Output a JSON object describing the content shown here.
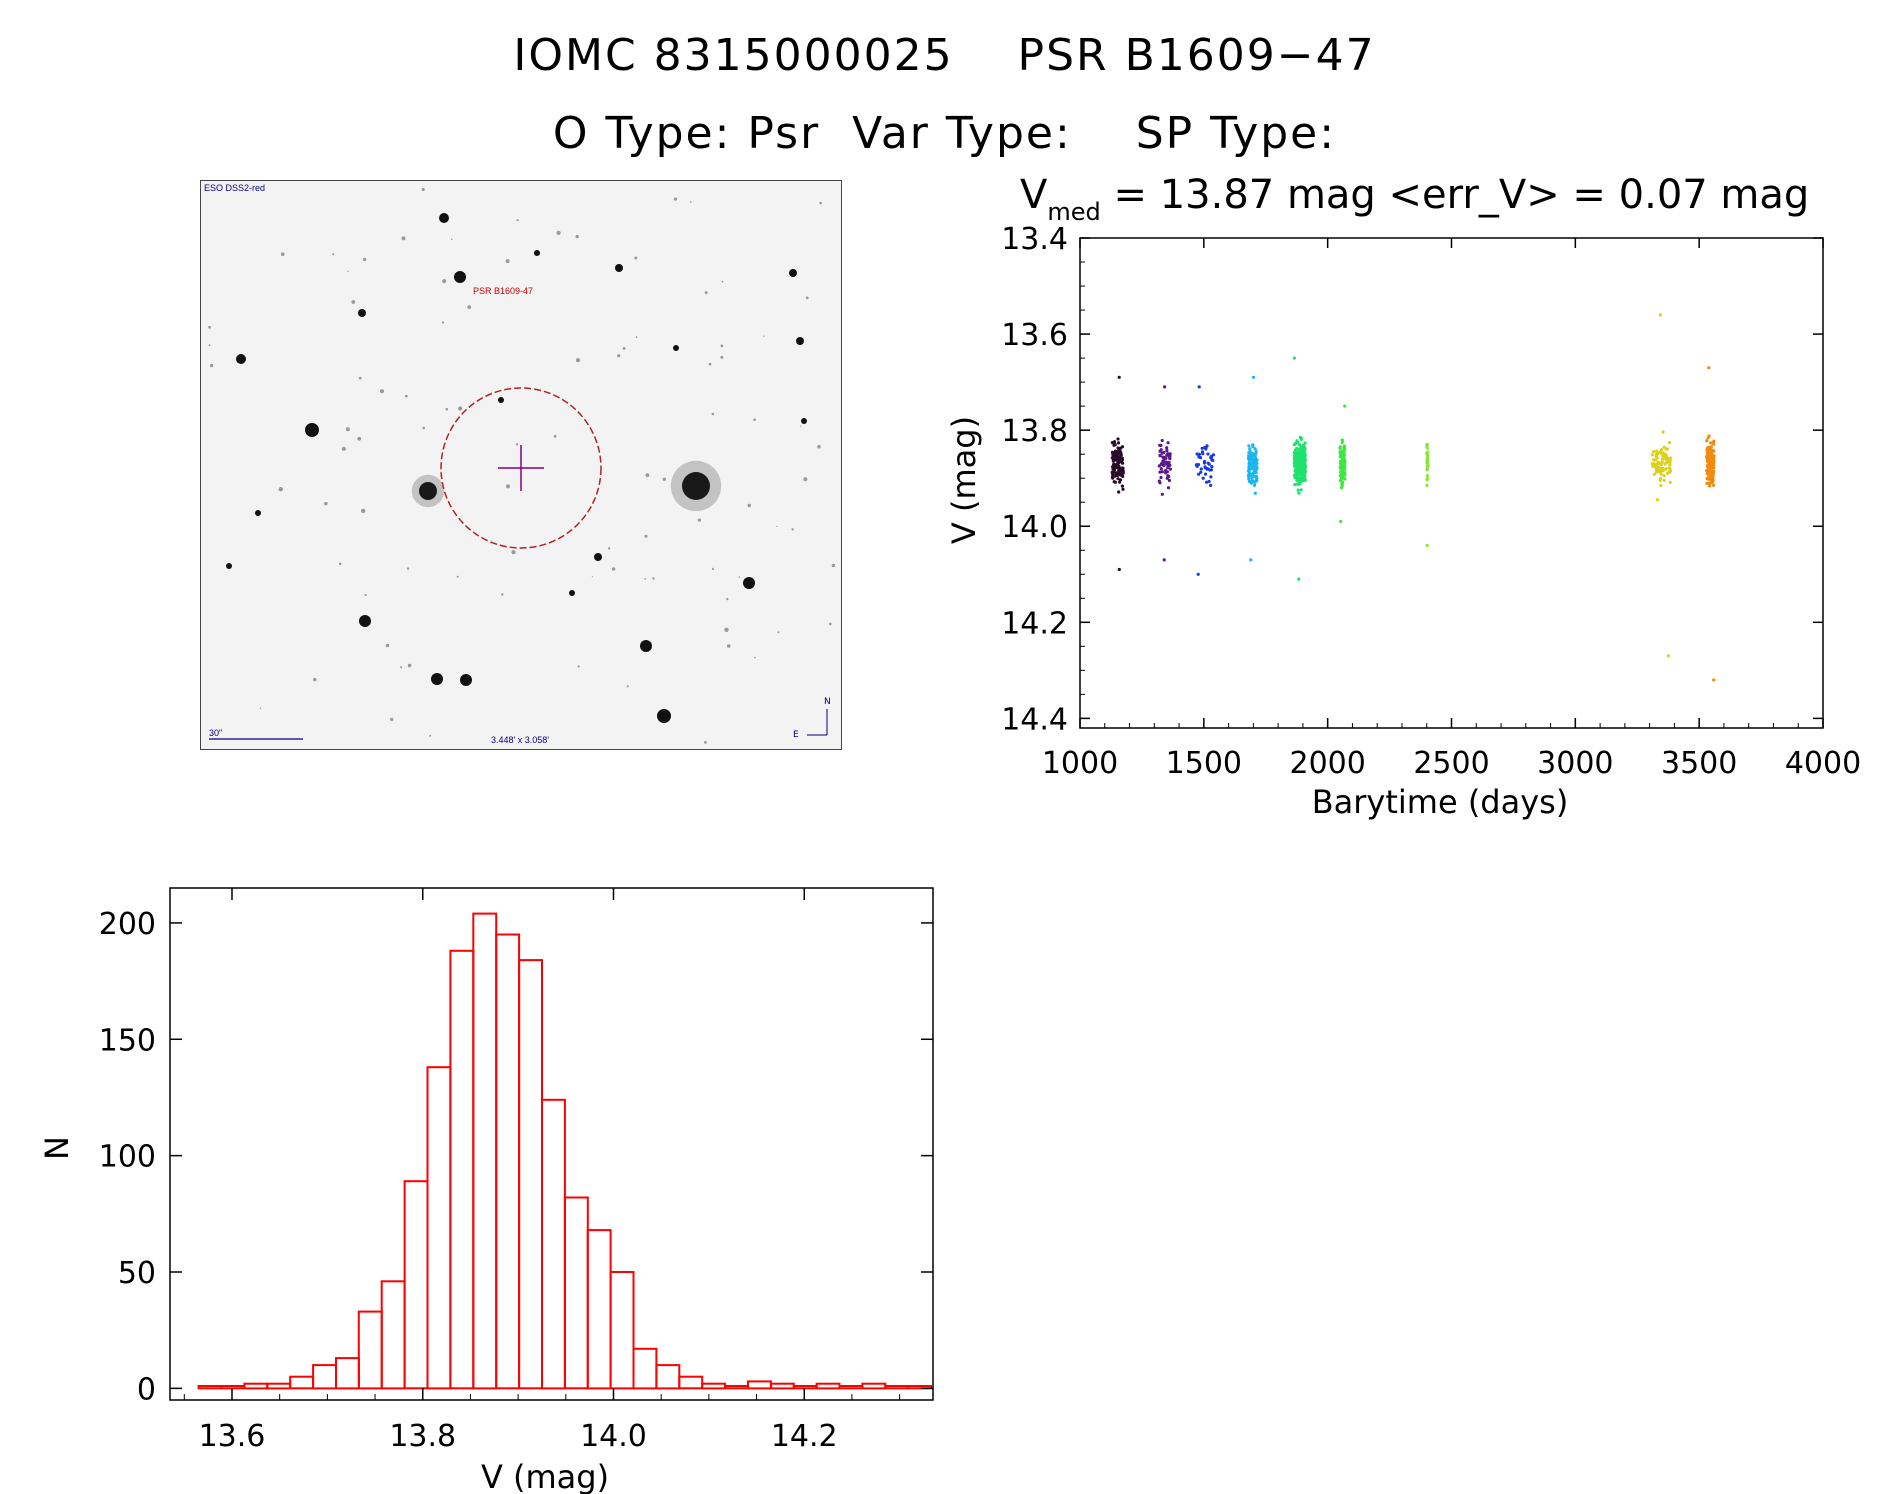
{
  "header": {
    "line1": "IOMC 8315000025    PSR B1609−47",
    "line2": "O Type: Psr  Var Type:    SP Type:"
  },
  "finder": {
    "survey_label": "ESO DSS2-red",
    "object_label": "PSR B1609-47",
    "scale_label": "30\"",
    "fov_label": "3.448' x 3.058'",
    "north_label": "N",
    "east_label": "E",
    "colors": {
      "circle": "#b22222",
      "cross": "#800080",
      "text_red": "#cc0000",
      "text_blue": "#000080"
    }
  },
  "chart_data": [
    {
      "type": "scatter",
      "name": "light-curve",
      "title_V": "V",
      "title_sub": "med",
      "title_rest": " = 13.87 mag <err_V> = 0.07 mag",
      "xlabel": "Barytime (days)",
      "ylabel": "V (mag)",
      "xlim": [
        1000,
        4000
      ],
      "ylim": [
        14.42,
        13.4
      ],
      "x_ticks": [
        1000,
        1500,
        2000,
        2500,
        3000,
        3500,
        4000
      ],
      "x_tick_labels": [
        "1000",
        "1500",
        "2000",
        "2500",
        "3000",
        "3500",
        "4000"
      ],
      "y_ticks": [
        13.4,
        13.6,
        13.8,
        14.0,
        14.2,
        14.4
      ],
      "y_tick_labels": [
        "13.4",
        "13.6",
        "13.8",
        "14.0",
        "14.2",
        "14.4"
      ],
      "groups": [
        {
          "x0": 1130,
          "x1": 1175,
          "ymin": 13.69,
          "ymax": 14.09,
          "n": 120,
          "color": "#2a0a2a"
        },
        {
          "x0": 1320,
          "x1": 1365,
          "ymin": 13.71,
          "ymax": 14.07,
          "n": 60,
          "color": "#5a1a8a"
        },
        {
          "x0": 1470,
          "x1": 1540,
          "ymin": 13.71,
          "ymax": 14.1,
          "n": 45,
          "color": "#1a3ae0"
        },
        {
          "x0": 1680,
          "x1": 1715,
          "ymin": 13.69,
          "ymax": 14.07,
          "n": 110,
          "color": "#19b6ee"
        },
        {
          "x0": 1865,
          "x1": 1910,
          "ymin": 13.65,
          "ymax": 14.11,
          "n": 300,
          "color": "#1ee36e"
        },
        {
          "x0": 2050,
          "x1": 2070,
          "ymin": 13.75,
          "ymax": 13.99,
          "n": 110,
          "color": "#3fe83f"
        },
        {
          "x0": 2400,
          "x1": 2405,
          "ymin": 13.83,
          "ymax": 14.04,
          "n": 35,
          "color": "#8ae63a"
        },
        {
          "x0": 3310,
          "x1": 3385,
          "ymin": 13.56,
          "ymax": 14.27,
          "n": 90,
          "color": "#dcd01a"
        },
        {
          "x0": 3530,
          "x1": 3560,
          "ymin": 13.67,
          "ymax": 14.32,
          "n": 170,
          "color": "#f08a10"
        }
      ]
    },
    {
      "type": "bar",
      "name": "magnitude-histogram",
      "xlabel": "V (mag)",
      "ylabel": "N",
      "xlim": [
        13.535,
        14.335
      ],
      "ylim": [
        -5,
        215
      ],
      "x_ticks": [
        13.6,
        13.8,
        14.0,
        14.2
      ],
      "x_tick_labels": [
        "13.6",
        "13.8",
        "14.0",
        "14.2"
      ],
      "y_ticks": [
        0,
        50,
        100,
        150,
        200
      ],
      "y_tick_labels": [
        "0",
        "50",
        "100",
        "150",
        "200"
      ],
      "bin_width": 0.024,
      "bin_start": 13.565,
      "counts": [
        1,
        1,
        2,
        2,
        5,
        10,
        13,
        33,
        46,
        89,
        138,
        188,
        204,
        195,
        184,
        124,
        82,
        68,
        50,
        17,
        10,
        5,
        2,
        1,
        3,
        2,
        1,
        2,
        1,
        2,
        1,
        1
      ],
      "color": "#ff0000"
    }
  ]
}
